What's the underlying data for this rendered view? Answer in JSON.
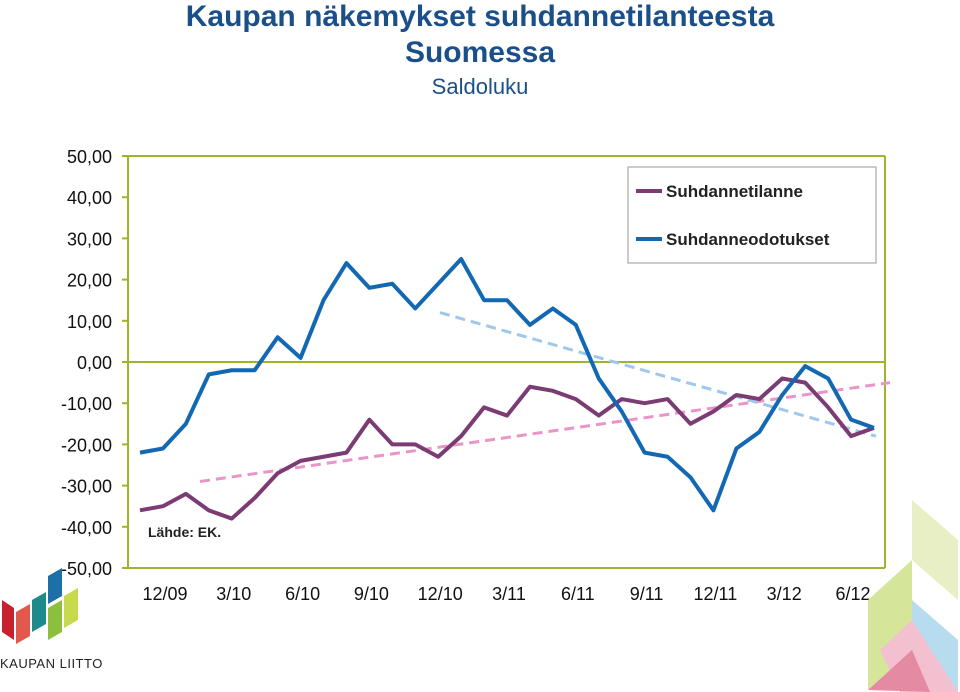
{
  "title_line1": "Kaupan näkemykset suhdannetilanteesta",
  "title_line2": "Suomessa",
  "subtitle": "Saldoluku",
  "source_note": "Lähde: EK.",
  "logo_text": "KAUPAN LIITTO",
  "colors": {
    "title": "#1b4f8a",
    "suhdannetilanne": "#7b3b73",
    "suhdanneodotukset": "#1268b3",
    "trend_suhdannetilanne": "#e896c8",
    "trend_suhdanneodotukset": "#9ec8ec",
    "axis": "#9cb52a"
  },
  "chart_data": {
    "type": "line",
    "ylim": [
      -50,
      50
    ],
    "y_ticks": [
      "50,00",
      "40,00",
      "30,00",
      "20,00",
      "10,00",
      "0,00",
      "-10,00",
      "-20,00",
      "-30,00",
      "-40,00",
      "-50,00"
    ],
    "x_tick_labels": [
      "12/09",
      "3/10",
      "6/10",
      "9/10",
      "12/10",
      "3/11",
      "6/11",
      "9/11",
      "12/11",
      "3/12",
      "6/12"
    ],
    "legend_position": "top-right",
    "legend": [
      "Suhdannetilanne",
      "Suhdanneodotukset"
    ],
    "series": [
      {
        "name": "Suhdannetilanne",
        "values": [
          -36,
          -35,
          -32,
          -36,
          -38,
          -33,
          -27,
          -24,
          -23,
          -22,
          -14,
          -20,
          -20,
          -23,
          -18,
          -11,
          -13,
          -6,
          -7,
          -9,
          -13,
          -9,
          -10,
          -9,
          -15,
          -12,
          -8,
          -9,
          -4,
          -5,
          -11,
          -18,
          -16
        ]
      },
      {
        "name": "Suhdanneodotukset",
        "values": [
          -22,
          -21,
          -15,
          -3,
          -2,
          -2,
          6,
          1,
          15,
          24,
          18,
          19,
          13,
          19,
          25,
          15,
          15,
          9,
          13,
          9,
          -4,
          -12,
          -22,
          -23,
          -28,
          -36,
          -21,
          -17,
          -8,
          -1,
          -4,
          -14,
          -16
        ]
      }
    ],
    "trendlines": [
      {
        "start": -29,
        "end": -5
      },
      {
        "start": 12,
        "end": -18
      }
    ]
  }
}
